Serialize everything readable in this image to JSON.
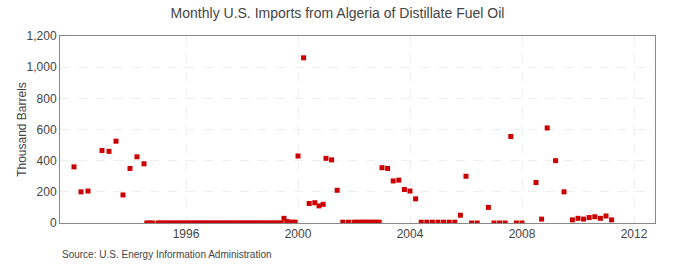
{
  "chart_data": {
    "type": "scatter",
    "title": "Monthly U.S. Imports from Algeria of Distillate Fuel Oil",
    "y_label": "Thousand Barrels",
    "annotations": [
      "Source: U.S. Energy Information Administration"
    ],
    "color": "#cc0000",
    "marker": "square",
    "grid": true,
    "xlim": [
      1991.5,
      2012.75
    ],
    "xticks": [
      1996,
      2000,
      2004,
      2008,
      2012
    ],
    "ylim": [
      0,
      1200
    ],
    "yticks": [
      0,
      200,
      400,
      600,
      800,
      {
        "value": 1000,
        "label": "1,000"
      },
      {
        "value": 1200,
        "label": "1,200"
      }
    ],
    "x": [
      1992.0,
      1992.25,
      1992.5,
      1993.0,
      1993.25,
      1993.5,
      1993.75,
      1994.0,
      1994.25,
      1994.5,
      1994.6,
      1994.7,
      1994.8,
      1995.0,
      1995.1,
      1995.2,
      1995.3,
      1995.4,
      1995.5,
      1995.6,
      1995.7,
      1995.8,
      1995.9,
      1996.0,
      1996.1,
      1996.2,
      1996.3,
      1996.4,
      1996.5,
      1996.6,
      1996.7,
      1996.8,
      1996.9,
      1997.0,
      1997.1,
      1997.2,
      1997.3,
      1997.4,
      1997.5,
      1997.6,
      1997.7,
      1997.8,
      1997.9,
      1998.0,
      1998.1,
      1998.2,
      1998.3,
      1998.4,
      1998.5,
      1998.6,
      1998.7,
      1998.8,
      1998.9,
      1999.0,
      1999.1,
      1999.2,
      1999.3,
      1999.4,
      1999.5,
      1999.6,
      1999.7,
      1999.8,
      1999.9,
      2000.0,
      2000.2,
      2000.4,
      2000.6,
      2000.75,
      2000.9,
      2001.0,
      2001.2,
      2001.4,
      2001.6,
      2001.8,
      2002.0,
      2002.1,
      2002.2,
      2002.3,
      2002.4,
      2002.5,
      2002.6,
      2002.7,
      2002.8,
      2002.9,
      2003.0,
      2003.2,
      2003.4,
      2003.6,
      2003.8,
      2004.0,
      2004.2,
      2004.4,
      2004.6,
      2004.8,
      2005.0,
      2005.2,
      2005.4,
      2005.6,
      2005.8,
      2006.0,
      2006.2,
      2006.4,
      2006.8,
      2007.0,
      2007.2,
      2007.4,
      2007.6,
      2007.8,
      2008.0,
      2008.5,
      2008.7,
      2008.9,
      2009.2,
      2009.5,
      2009.8,
      2010.0,
      2010.2,
      2010.4,
      2010.6,
      2010.8,
      2011.0,
      2011.2
    ],
    "values": [
      360,
      200,
      205,
      465,
      460,
      525,
      180,
      350,
      425,
      380,
      0,
      0,
      0,
      0,
      0,
      0,
      0,
      0,
      0,
      0,
      0,
      0,
      0,
      0,
      0,
      0,
      0,
      0,
      0,
      0,
      0,
      0,
      0,
      0,
      0,
      0,
      0,
      0,
      0,
      0,
      0,
      0,
      0,
      0,
      0,
      0,
      0,
      0,
      0,
      0,
      0,
      0,
      0,
      0,
      0,
      0,
      0,
      0,
      30,
      10,
      5,
      5,
      5,
      430,
      1060,
      125,
      130,
      110,
      120,
      415,
      405,
      210,
      5,
      5,
      5,
      5,
      5,
      5,
      5,
      5,
      5,
      5,
      5,
      5,
      355,
      350,
      270,
      275,
      215,
      205,
      155,
      5,
      5,
      5,
      5,
      5,
      5,
      5,
      50,
      300,
      0,
      0,
      100,
      0,
      0,
      0,
      555,
      0,
      0,
      260,
      25,
      610,
      400,
      200,
      20,
      30,
      25,
      35,
      40,
      30,
      45,
      20
    ]
  }
}
